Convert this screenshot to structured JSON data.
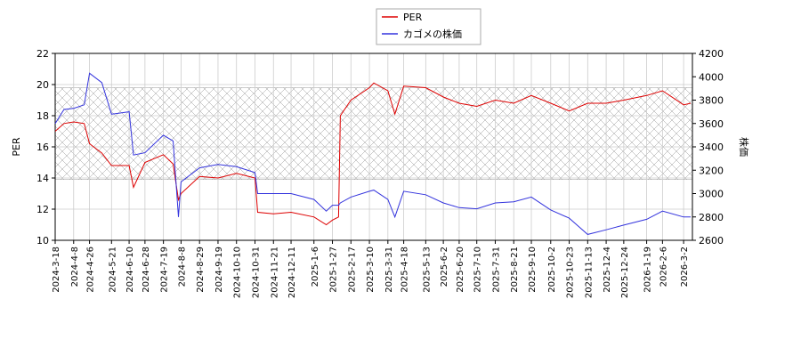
{
  "chart_data": {
    "type": "line",
    "x": [
      "2024-3-18",
      "2024-3-28",
      "2024-4-8",
      "2024-4-20",
      "2024-4-26",
      "2024-5-10",
      "2024-5-21",
      "2024-6-10",
      "2024-6-15",
      "2024-6-28",
      "2024-7-19",
      "2024-7-30",
      "2024-8-5",
      "2024-8-8",
      "2024-8-29",
      "2024-9-19",
      "2024-10-10",
      "2024-10-31",
      "2024-11-3",
      "2024-11-21",
      "2024-12-11",
      "2025-1-6",
      "2025-1-20",
      "2025-1-27",
      "2025-2-3",
      "2025-2-5",
      "2025-2-17",
      "2025-3-10",
      "2025-3-15",
      "2025-3-31",
      "2025-4-8",
      "2025-4-18",
      "2025-5-13",
      "2025-6-2",
      "2025-6-20",
      "2025-7-10",
      "2025-7-31",
      "2025-8-21",
      "2025-9-10",
      "2025-10-2",
      "2025-10-23",
      "2025-11-13",
      "2025-12-4",
      "2025-12-24",
      "2026-1-19",
      "2026-2-6",
      "2026-3-2",
      "2026-3-10"
    ],
    "series": [
      {
        "name": "PER",
        "color": "#dd0000",
        "axis": "y",
        "values": [
          17.0,
          17.5,
          17.6,
          17.5,
          16.2,
          15.6,
          14.8,
          14.8,
          13.4,
          15.0,
          15.5,
          14.9,
          12.6,
          13.0,
          14.1,
          14.0,
          14.3,
          14.0,
          11.8,
          11.7,
          11.8,
          11.5,
          11.0,
          11.3,
          11.5,
          18.0,
          19.0,
          19.8,
          20.1,
          19.6,
          18.1,
          19.9,
          19.8,
          19.2,
          18.8,
          18.6,
          19.0,
          18.8,
          19.3,
          18.8,
          18.3,
          18.8,
          18.8,
          19.0,
          19.3,
          19.6,
          18.7,
          18.8
        ]
      },
      {
        "name": "カゴメの株価",
        "color": "#3333dd",
        "axis": "y2",
        "values": [
          3600,
          3720,
          3730,
          3760,
          4030,
          3950,
          3680,
          3700,
          3330,
          3350,
          3500,
          3450,
          2800,
          3100,
          3220,
          3250,
          3230,
          3180,
          3000,
          3000,
          3000,
          2950,
          2850,
          2900,
          2900,
          2920,
          2970,
          3020,
          3030,
          2950,
          2800,
          3020,
          2990,
          2920,
          2880,
          2870,
          2920,
          2930,
          2970,
          2860,
          2790,
          2650,
          2690,
          2730,
          2780,
          2850,
          2800,
          2800
        ]
      }
    ],
    "shaded_range": [
      13.9,
      19.8
    ],
    "ylabel": "PER",
    "y2label": "株価",
    "xlim": [
      "2024-3-18",
      "2026-3-12"
    ],
    "xticks": [
      "2024-3-18",
      "2024-4-8",
      "2024-4-26",
      "2024-5-21",
      "2024-6-10",
      "2024-6-28",
      "2024-7-19",
      "2024-8-8",
      "2024-8-29",
      "2024-9-19",
      "2024-10-10",
      "2024-10-31",
      "2024-11-21",
      "2024-12-11",
      "2025-1-6",
      "2025-1-27",
      "2025-2-17",
      "2025-3-10",
      "2025-3-31",
      "2025-4-18",
      "2025-5-13",
      "2025-6-2",
      "2025-6-20",
      "2025-7-10",
      "2025-7-31",
      "2025-8-21",
      "2025-9-10",
      "2025-10-2",
      "2025-10-23",
      "2025-11-13",
      "2025-12-4",
      "2025-12-24",
      "2026-1-19",
      "2026-2-6",
      "2026-3-2"
    ],
    "ylim": [
      10,
      22
    ],
    "yticks": [
      10,
      12,
      14,
      16,
      18,
      20,
      22
    ],
    "y2lim": [
      2600,
      4200
    ],
    "y2ticks": [
      2600,
      2800,
      3000,
      3200,
      3400,
      3600,
      3800,
      4000,
      4200
    ],
    "grid": true,
    "legend": "top"
  }
}
